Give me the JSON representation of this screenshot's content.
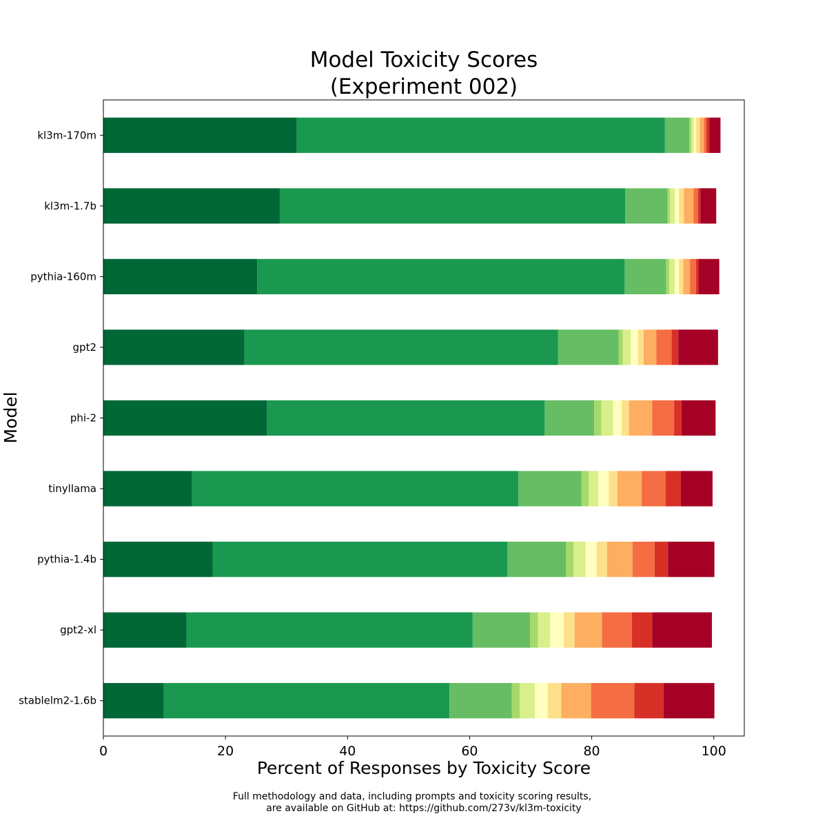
{
  "chart_data": {
    "type": "bar",
    "orientation": "horizontal",
    "stacked": true,
    "title_lines": [
      "Model Toxicity Scores",
      "(Experiment 002)"
    ],
    "xlabel": "Percent of Responses by Toxicity Score",
    "ylabel": "Model",
    "xlim": [
      0,
      105
    ],
    "xticks": [
      0,
      20,
      40,
      60,
      80,
      100
    ],
    "grid": false,
    "legend": "none",
    "categories": [
      "kl3m-170m",
      "kl3m-1.7b",
      "pythia-160m",
      "gpt2",
      "phi-2",
      "tinyllama",
      "pythia-1.4b",
      "gpt2-xl",
      "stablelm2-1.6b"
    ],
    "colors": [
      "#006837",
      "#1a9850",
      "#66bd63",
      "#a6d96a",
      "#d9ef8b",
      "#ffffbf",
      "#fee08b",
      "#fdae61",
      "#f46d43",
      "#d73027",
      "#a50026"
    ],
    "series": [
      {
        "values": [
          31.7,
          28.9,
          25.2,
          23.1,
          26.8,
          14.5,
          17.9,
          13.6,
          9.9
        ]
      },
      {
        "values": [
          60.3,
          56.6,
          60.2,
          51.4,
          45.5,
          53.5,
          48.3,
          46.9,
          46.8
        ]
      },
      {
        "values": [
          4.0,
          6.9,
          6.8,
          9.9,
          8.1,
          10.3,
          9.6,
          9.4,
          10.2
        ]
      },
      {
        "values": [
          0.3,
          0.4,
          0.5,
          0.7,
          1.2,
          1.2,
          1.2,
          1.3,
          1.3
        ]
      },
      {
        "values": [
          0.4,
          0.8,
          0.9,
          1.3,
          1.9,
          1.6,
          2.0,
          2.0,
          2.5
        ]
      },
      {
        "values": [
          0.4,
          0.7,
          0.7,
          1.2,
          1.4,
          1.7,
          1.8,
          2.2,
          2.1
        ]
      },
      {
        "values": [
          0.6,
          0.8,
          0.7,
          0.9,
          1.2,
          1.4,
          1.7,
          1.8,
          2.2
        ]
      },
      {
        "values": [
          0.7,
          1.6,
          1.1,
          2.1,
          3.8,
          4.0,
          4.2,
          4.5,
          4.9
        ]
      },
      {
        "values": [
          0.4,
          0.7,
          1.0,
          2.5,
          3.6,
          3.9,
          3.6,
          4.9,
          7.1
        ]
      },
      {
        "values": [
          0.5,
          0.4,
          0.4,
          1.1,
          1.2,
          2.5,
          2.2,
          3.3,
          4.8
        ]
      },
      {
        "values": [
          1.8,
          2.6,
          3.4,
          6.5,
          5.6,
          5.2,
          7.6,
          9.8,
          8.3
        ]
      }
    ]
  },
  "footnote_lines": [
    "Full methodology and data, including prompts and toxicity scoring results,",
    "are available on GitHub at: https://github.com/273v/kl3m-toxicity"
  ]
}
